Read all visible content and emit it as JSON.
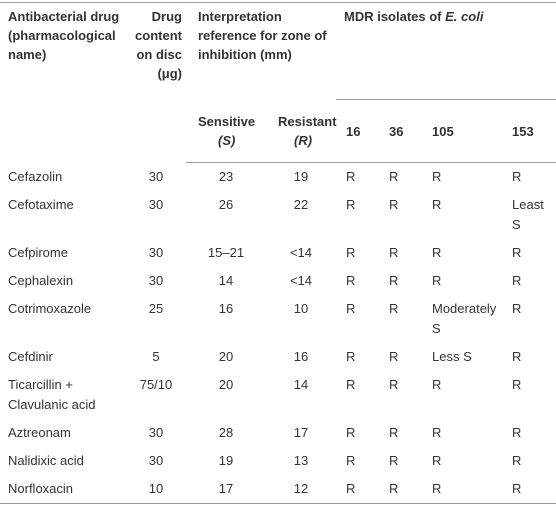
{
  "header": {
    "drug": "Antibacterial drug (pharmacological name)",
    "content": "Drug content on disc (μg)",
    "interpretation": "Interpretation reference for zone of inhibition (mm)",
    "isolates": "MDR isolates of",
    "isolates_organism": "E. coli",
    "sensitive": "Sensitive",
    "sensitive_symbol": "(S)",
    "resistant": "Resistant",
    "resistant_symbol": "(R)",
    "isolate_ids": [
      "16",
      "36",
      "105",
      "153"
    ]
  },
  "rows": [
    [
      "Cefazolin",
      "30",
      "23",
      "19",
      "R",
      "R",
      "R",
      "R"
    ],
    [
      "Cefotaxime",
      "30",
      "26",
      "22",
      "R",
      "R",
      "R",
      "Least S"
    ],
    [
      "Cefpirome",
      "30",
      "15–21",
      "<14",
      "R",
      "R",
      "R",
      "R"
    ],
    [
      "Cephalexin",
      "30",
      "14",
      "<14",
      "R",
      "R",
      "R",
      "R"
    ],
    [
      "Cotrimoxazole",
      "25",
      "16",
      "10",
      "R",
      "R",
      "Moderately S",
      "R"
    ],
    [
      "Cefdinir",
      "5",
      "20",
      "16",
      "R",
      "R",
      "Less S",
      "R"
    ],
    [
      "Ticarcillin + Clavulanic acid",
      "75/10",
      "20",
      "14",
      "R",
      "R",
      "R",
      "R"
    ],
    [
      "Aztreonam",
      "30",
      "28",
      "17",
      "R",
      "R",
      "R",
      "R"
    ],
    [
      "Nalidixic acid",
      "30",
      "19",
      "13",
      "R",
      "R",
      "R",
      "R"
    ],
    [
      "Norfloxacin",
      "10",
      "17",
      "12",
      "R",
      "R",
      "R",
      "R"
    ]
  ]
}
